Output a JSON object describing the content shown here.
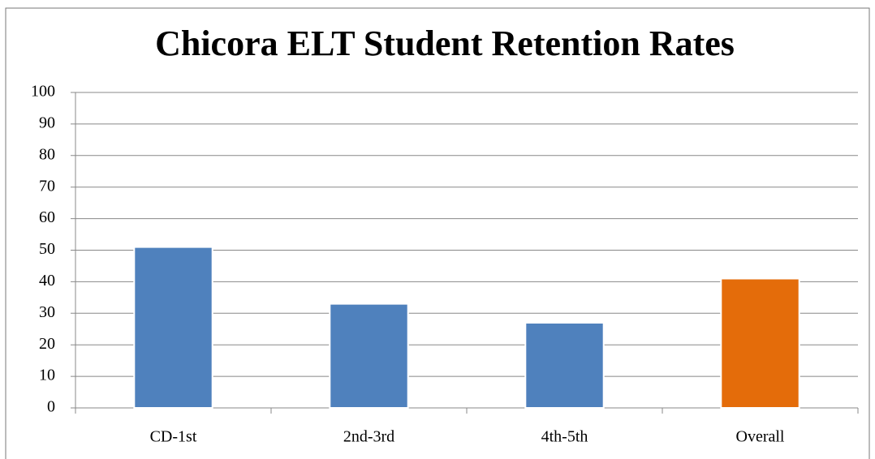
{
  "chart_data": {
    "type": "bar",
    "title": "Chicora ELT Student Retention Rates",
    "categories": [
      "CD-1st",
      "2nd-3rd",
      "4th-5th",
      "Overall"
    ],
    "values": [
      51,
      33,
      27,
      41
    ],
    "colors": [
      "#4f81bd",
      "#4f81bd",
      "#4f81bd",
      "#e46c0a"
    ],
    "ylim": [
      0,
      100
    ],
    "yticks": [
      0,
      10,
      20,
      30,
      40,
      50,
      60,
      70,
      80,
      90,
      100
    ],
    "grid": true
  }
}
